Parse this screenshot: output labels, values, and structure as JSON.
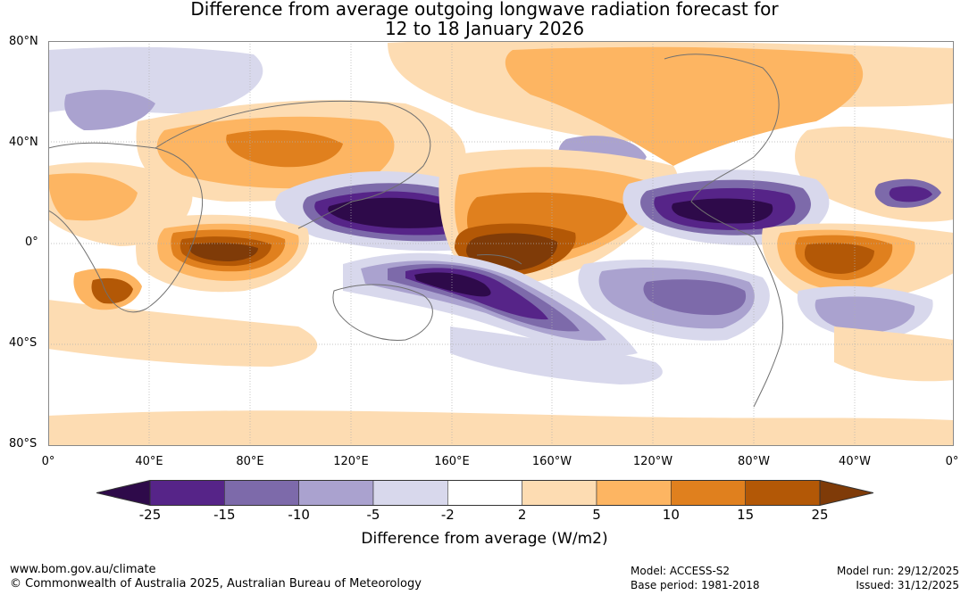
{
  "title": {
    "line1": "Difference from average outgoing longwave radiation forecast for",
    "line2": "12 to 18 January 2026"
  },
  "axes": {
    "lat_labels": [
      "80°N",
      "40°N",
      "0°",
      "40°S",
      "80°S"
    ],
    "lon_labels": [
      "0°",
      "40°E",
      "80°E",
      "120°E",
      "160°E",
      "160°W",
      "120°W",
      "80°W",
      "40°W",
      "0°"
    ]
  },
  "colorbar": {
    "ticks": [
      "-25",
      "-15",
      "-10",
      "-5",
      "-2",
      "2",
      "5",
      "10",
      "15",
      "25"
    ],
    "colors": [
      "#2e0a4a",
      "#562488",
      "#7d6aaa",
      "#aaa2cf",
      "#d8d8ec",
      "#ffffff",
      "#fddcb2",
      "#fdb562",
      "#e0801e",
      "#b35806",
      "#7f3b08"
    ],
    "label": "Difference from average (W/m2)"
  },
  "footer": {
    "website": "www.bom.gov.au/climate",
    "copyright": "© Commonwealth of Australia 2025, Australian Bureau of Meteorology",
    "model": "Model: ACCESS-S2",
    "base_period": "Base period: 1981-2018",
    "model_run": "Model run: 29/12/2025",
    "issued": "Issued: 31/12/2025"
  }
}
